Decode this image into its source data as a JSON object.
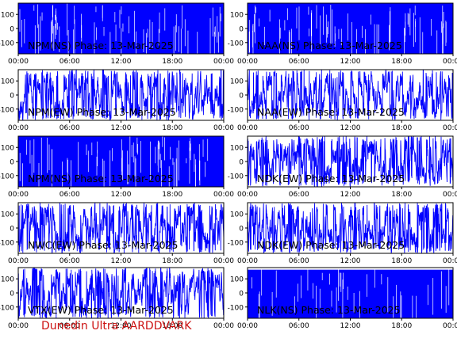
{
  "credit": "Dunedin Ultra AARDDVARK",
  "colors": {
    "trace": "#0000ff",
    "axes": "#000000",
    "credit": "#cc1111"
  },
  "chart_data": [
    {
      "type": "line",
      "title": "NPM(NS) Phase: 13-Mar-2025",
      "ylim": [
        -180,
        180
      ],
      "yticks": [
        100,
        0,
        -100
      ],
      "xticks": [
        "00:00",
        "06:00",
        "12:00",
        "18:00",
        "00:00"
      ],
      "density": "solid",
      "noise": "dense"
    },
    {
      "type": "line",
      "title": "NAA(NS) Phase: 13-Mar-2025",
      "ylim": [
        -180,
        180
      ],
      "yticks": [
        100,
        0,
        -100
      ],
      "xticks": [
        "00:00",
        "06:00",
        "12:00",
        "18:00",
        "00:00"
      ],
      "density": "solid",
      "noise": "dense"
    },
    {
      "type": "line",
      "title": "NPM(EW) Phase: 13-Mar-2025",
      "ylim": [
        -180,
        180
      ],
      "yticks": [
        100,
        0,
        -100
      ],
      "xticks": [
        "00:00",
        "06:00",
        "12:00",
        "18:00",
        "00:00"
      ],
      "density": "wrapping",
      "noise": "medium"
    },
    {
      "type": "line",
      "title": "NAA(EW) Phase: 13-Mar-2025",
      "ylim": [
        -180,
        180
      ],
      "yticks": [
        100,
        0,
        -100
      ],
      "xticks": [
        "00:00",
        "06:00",
        "12:00",
        "18:00",
        "00:00"
      ],
      "density": "wrapping",
      "noise": "medium"
    },
    {
      "type": "line",
      "title": "NPM(NS) Phase: 13-Mar-2025",
      "ylim": [
        -180,
        180
      ],
      "yticks": [
        100,
        0,
        -100
      ],
      "xticks": [
        "00:00",
        "06:00",
        "12:00",
        "18:00",
        "00:00"
      ],
      "density": "solid",
      "noise": "dense"
    },
    {
      "type": "line",
      "title": "NDK(EW) Phase: 13-Mar-2025",
      "ylim": [
        -180,
        180
      ],
      "yticks": [
        100,
        0,
        -100
      ],
      "xticks": [
        "00:00",
        "06:00",
        "12:00",
        "18:00",
        "00:00"
      ],
      "density": "wrapping",
      "noise": "medium"
    },
    {
      "type": "line",
      "title": "NWC(EW) Phase: 13-Mar-2025",
      "ylim": [
        -180,
        180
      ],
      "yticks": [
        100,
        0,
        -100
      ],
      "xticks": [
        "00:00",
        "06:00",
        "12:00",
        "18:00",
        "00:00"
      ],
      "density": "wrapping",
      "noise": "medium"
    },
    {
      "type": "line",
      "title": "NDK(EW) Phase: 13-Mar-2025",
      "ylim": [
        -180,
        180
      ],
      "yticks": [
        100,
        0,
        -100
      ],
      "xticks": [
        "00:00",
        "06:00",
        "12:00",
        "18:00",
        "00:00"
      ],
      "density": "wrapping",
      "noise": "medium"
    },
    {
      "type": "line",
      "title": "VTX(EW) Phase: 13-Mar-2025",
      "ylim": [
        -180,
        180
      ],
      "yticks": [
        100,
        0,
        -100
      ],
      "xticks": [
        "00:00",
        "06:00",
        "12:00",
        "18:00",
        "00:00"
      ],
      "density": "wrapping",
      "noise": "medium"
    },
    {
      "type": "line",
      "title": "NLK(NS) Phase: 13-Mar-2025",
      "ylim": [
        -180,
        180
      ],
      "yticks": [
        100,
        0,
        -100
      ],
      "xticks": [
        "00:00",
        "06:00",
        "12:00",
        "18:00",
        "00:00"
      ],
      "density": "solid",
      "noise": "sparse"
    }
  ]
}
